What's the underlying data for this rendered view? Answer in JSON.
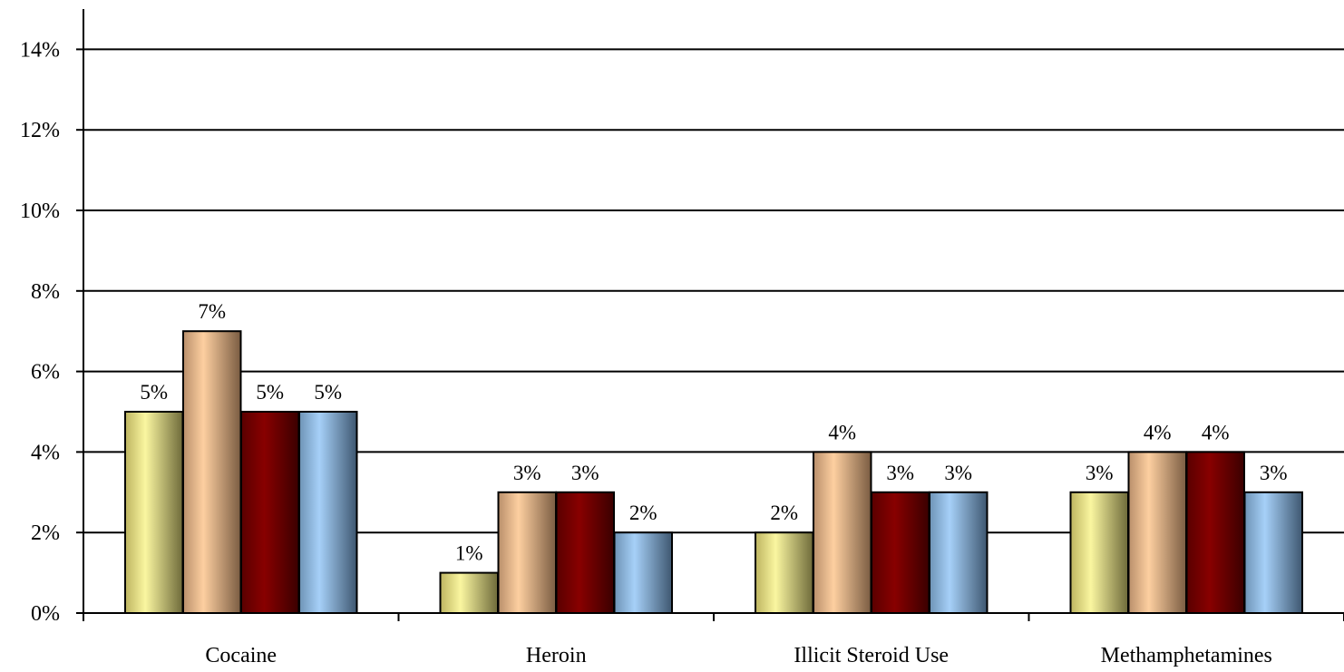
{
  "chart_data": {
    "type": "bar",
    "categories": [
      "Cocaine",
      "Heroin",
      "Illicit Steroid Use",
      "Methamphetamines"
    ],
    "series": [
      {
        "values": [
          5,
          1,
          2,
          3
        ],
        "color": "#f5f08a"
      },
      {
        "values": [
          7,
          3,
          4,
          4
        ],
        "color": "#f8c594"
      },
      {
        "values": [
          5,
          3,
          3,
          4
        ],
        "color": "#7a0000"
      },
      {
        "values": [
          5,
          2,
          3,
          3
        ],
        "color": "#8ebfee"
      }
    ],
    "data_labels": [
      [
        "5%",
        "1%",
        "2%",
        "3%"
      ],
      [
        "7%",
        "3%",
        "4%",
        "4%"
      ],
      [
        "5%",
        "3%",
        "3%",
        "4%"
      ],
      [
        "5%",
        "2%",
        "3%",
        "3%"
      ]
    ],
    "y_ticks": [
      "0%",
      "2%",
      "4%",
      "6%",
      "8%",
      "10%",
      "12%",
      "14%"
    ],
    "ylim": [
      0,
      14
    ],
    "grid": true,
    "legend": "none"
  }
}
